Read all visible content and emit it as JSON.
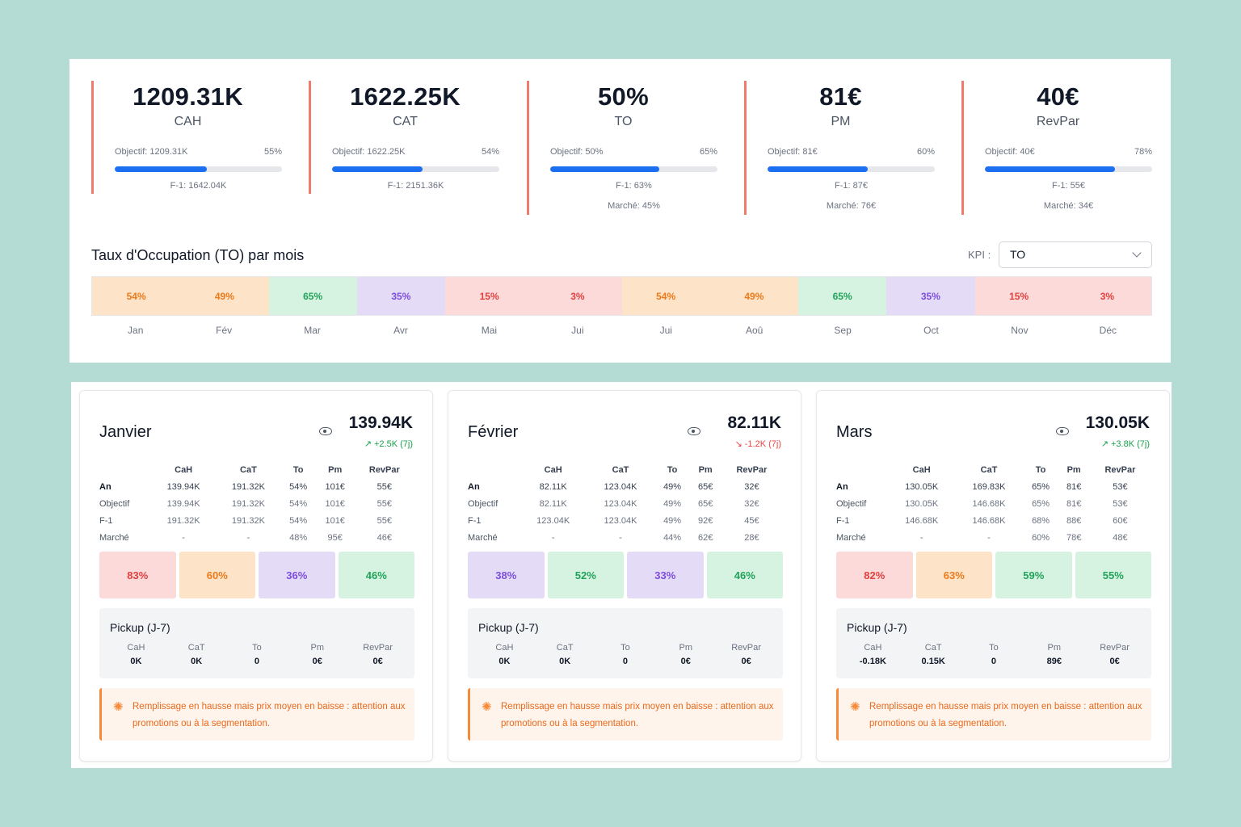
{
  "kpis": [
    {
      "value": "1209.31K",
      "label": "CAH",
      "objective": "Objectif: 1209.31K",
      "percent": "55%",
      "progress": 55,
      "f1": "F-1: 1642.04K",
      "market": ""
    },
    {
      "value": "1622.25K",
      "label": "CAT",
      "objective": "Objectif: 1622.25K",
      "percent": "54%",
      "progress": 54,
      "f1": "F-1: 2151.36K",
      "market": ""
    },
    {
      "value": "50%",
      "label": "TO",
      "objective": "Objectif: 50%",
      "percent": "65%",
      "progress": 65,
      "f1": "F-1: 63%",
      "market": "Marché: 45%"
    },
    {
      "value": "81€",
      "label": "PM",
      "objective": "Objectif: 81€",
      "percent": "60%",
      "progress": 60,
      "f1": "F-1: 87€",
      "market": "Marché: 76€"
    },
    {
      "value": "40€",
      "label": "RevPar",
      "objective": "Objectif: 40€",
      "percent": "78%",
      "progress": 78,
      "f1": "F-1: 55€",
      "market": "Marché: 34€"
    }
  ],
  "occupancy": {
    "title": "Taux d'Occupation (TO) par mois",
    "kpi_label": "KPI :",
    "kpi_selected": "TO",
    "months": [
      {
        "label": "Jan",
        "value": "54%",
        "bg": "#fde3c8",
        "fg": "#ea7a1a"
      },
      {
        "label": "Fév",
        "value": "49%",
        "bg": "#fde3c8",
        "fg": "#ea7a1a"
      },
      {
        "label": "Mar",
        "value": "65%",
        "bg": "#d6f2e1",
        "fg": "#22a35a"
      },
      {
        "label": "Avr",
        "value": "35%",
        "bg": "#e4dcf7",
        "fg": "#7c4ddb"
      },
      {
        "label": "Mai",
        "value": "15%",
        "bg": "#fcdada",
        "fg": "#e0413e"
      },
      {
        "label": "Jui",
        "value": "3%",
        "bg": "#fcdada",
        "fg": "#e0413e"
      },
      {
        "label": "Jui",
        "value": "54%",
        "bg": "#fde3c8",
        "fg": "#ea7a1a"
      },
      {
        "label": "Aoû",
        "value": "49%",
        "bg": "#fde3c8",
        "fg": "#ea7a1a"
      },
      {
        "label": "Sep",
        "value": "65%",
        "bg": "#d6f2e1",
        "fg": "#22a35a"
      },
      {
        "label": "Oct",
        "value": "35%",
        "bg": "#e4dcf7",
        "fg": "#7c4ddb"
      },
      {
        "label": "Nov",
        "value": "15%",
        "bg": "#fcdada",
        "fg": "#e0413e"
      },
      {
        "label": "Déc",
        "value": "3%",
        "bg": "#fcdada",
        "fg": "#e0413e"
      }
    ]
  },
  "table_headers": [
    "CaH",
    "CaT",
    "To",
    "Pm",
    "RevPar"
  ],
  "pickup_title": "Pickup (J-7)",
  "alert_text": "Remplissage en hausse mais prix moyen en baisse : attention aux promotions ou à la segmentation.",
  "month_cards": [
    {
      "name": "Janvier",
      "total": "139.94K",
      "pickup": "+2.5K (7j)",
      "trend": "up",
      "rows": [
        {
          "label": "An",
          "values": [
            "139.94K",
            "191.32K",
            "54%",
            "101€",
            "55€"
          ]
        },
        {
          "label": "Objectif",
          "values": [
            "139.94K",
            "191.32K",
            "54%",
            "101€",
            "55€"
          ]
        },
        {
          "label": "F-1",
          "values": [
            "191.32K",
            "191.32K",
            "54%",
            "101€",
            "55€"
          ]
        },
        {
          "label": "Marché",
          "values": [
            "-",
            "-",
            "48%",
            "95€",
            "46€"
          ]
        }
      ],
      "tiles": [
        {
          "value": "83%",
          "bg": "#fcdada",
          "fg": "#e0413e"
        },
        {
          "value": "60%",
          "bg": "#fde3c8",
          "fg": "#ea7a1a"
        },
        {
          "value": "36%",
          "bg": "#e4dcf7",
          "fg": "#7c4ddb"
        },
        {
          "value": "46%",
          "bg": "#d6f2e1",
          "fg": "#22a35a"
        }
      ],
      "pickup_values": [
        "0K",
        "0K",
        "0",
        "0€",
        "0€"
      ]
    },
    {
      "name": "Février",
      "total": "82.11K",
      "pickup": "-1.2K (7j)",
      "trend": "down",
      "rows": [
        {
          "label": "An",
          "values": [
            "82.11K",
            "123.04K",
            "49%",
            "65€",
            "32€"
          ]
        },
        {
          "label": "Objectif",
          "values": [
            "82.11K",
            "123.04K",
            "49%",
            "65€",
            "32€"
          ]
        },
        {
          "label": "F-1",
          "values": [
            "123.04K",
            "123.04K",
            "49%",
            "92€",
            "45€"
          ]
        },
        {
          "label": "Marché",
          "values": [
            "-",
            "-",
            "44%",
            "62€",
            "28€"
          ]
        }
      ],
      "tiles": [
        {
          "value": "38%",
          "bg": "#e4dcf7",
          "fg": "#7c4ddb"
        },
        {
          "value": "52%",
          "bg": "#d6f2e1",
          "fg": "#22a35a"
        },
        {
          "value": "33%",
          "bg": "#e4dcf7",
          "fg": "#7c4ddb"
        },
        {
          "value": "46%",
          "bg": "#d6f2e1",
          "fg": "#22a35a"
        }
      ],
      "pickup_values": [
        "0K",
        "0K",
        "0",
        "0€",
        "0€"
      ]
    },
    {
      "name": "Mars",
      "total": "130.05K",
      "pickup": "+3.8K (7j)",
      "trend": "up",
      "rows": [
        {
          "label": "An",
          "values": [
            "130.05K",
            "169.83K",
            "65%",
            "81€",
            "53€"
          ]
        },
        {
          "label": "Objectif",
          "values": [
            "130.05K",
            "146.68K",
            "65%",
            "81€",
            "53€"
          ]
        },
        {
          "label": "F-1",
          "values": [
            "146.68K",
            "146.68K",
            "68%",
            "88€",
            "60€"
          ]
        },
        {
          "label": "Marché",
          "values": [
            "-",
            "-",
            "60%",
            "78€",
            "48€"
          ]
        }
      ],
      "tiles": [
        {
          "value": "82%",
          "bg": "#fcdada",
          "fg": "#e0413e"
        },
        {
          "value": "63%",
          "bg": "#fde3c8",
          "fg": "#ea7a1a"
        },
        {
          "value": "59%",
          "bg": "#d6f2e1",
          "fg": "#22a35a"
        },
        {
          "value": "55%",
          "bg": "#d6f2e1",
          "fg": "#22a35a"
        }
      ],
      "pickup_values": [
        "-0.18K",
        "0.15K",
        "0",
        "89€",
        "0€"
      ]
    }
  ]
}
